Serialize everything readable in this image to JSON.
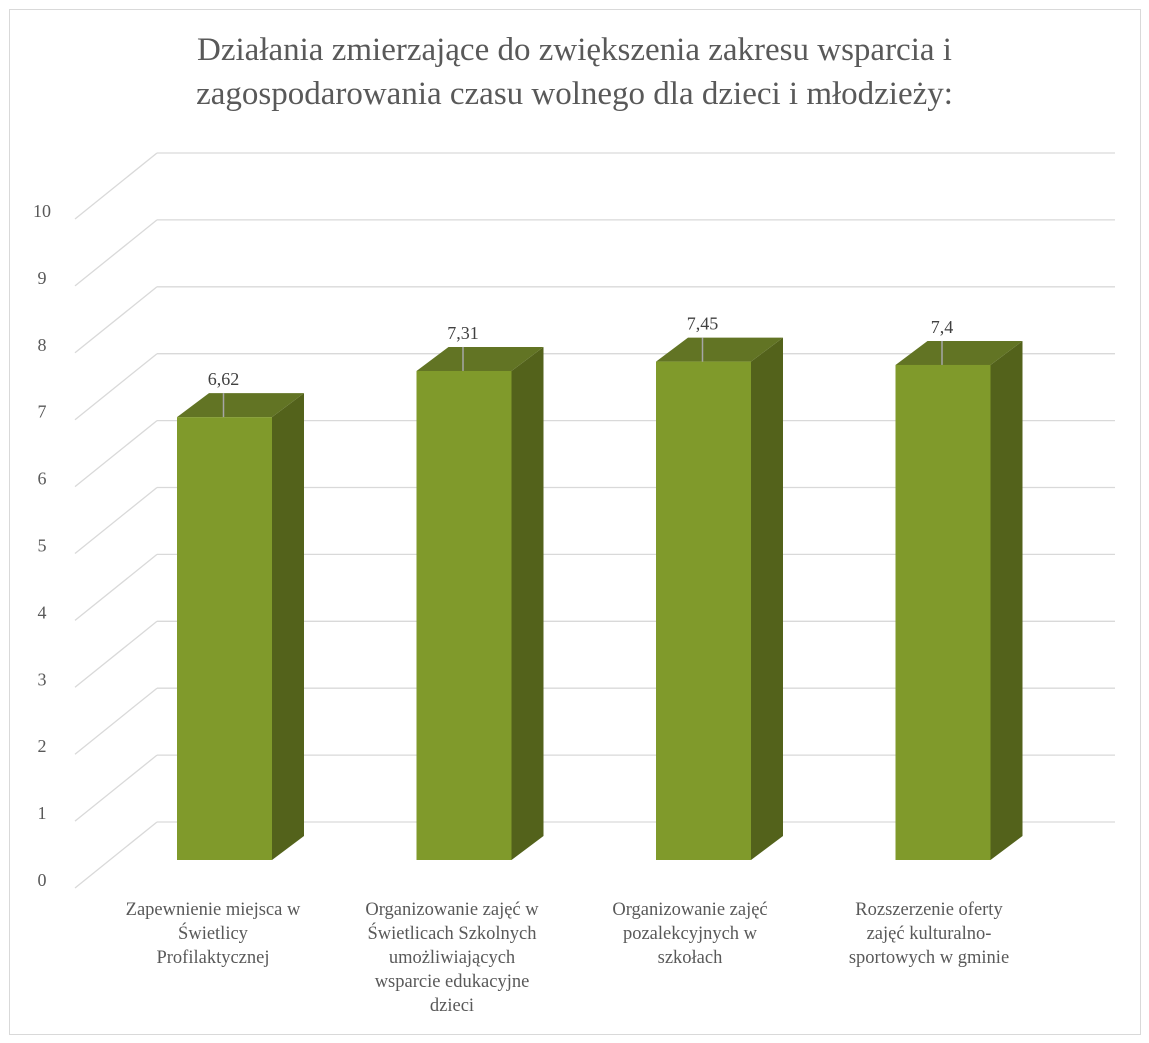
{
  "chart_data": {
    "type": "bar",
    "title_lines": [
      "Działania zmierzające do zwiększenia zakresu wsparcia i",
      "zagospodarowania czasu wolnego dla dzieci i młodzieży:"
    ],
    "categories": [
      [
        "Zapewnienie miejsca w",
        "Świetlicy",
        "Profilaktycznej"
      ],
      [
        "Organizowanie zajęć w",
        "Świetlicach Szkolnych",
        "umożliwiających",
        "wsparcie edukacyjne",
        "dzieci"
      ],
      [
        "Organizowanie zajęć",
        "pozalekcyjnych w",
        "szkołach"
      ],
      [
        "Rozszerzenie oferty",
        "zajęć kulturalno-",
        "sportowych w gminie"
      ]
    ],
    "values": [
      6.62,
      7.31,
      7.45,
      7.4
    ],
    "data_labels": [
      "6,62",
      "7,31",
      "7,45",
      "7,4"
    ],
    "ylim": [
      0,
      10
    ],
    "yticks": [
      "0",
      "1",
      "2",
      "3",
      "4",
      "5",
      "6",
      "7",
      "8",
      "9",
      "10"
    ],
    "grid": true,
    "style": "3d-column",
    "colors": {
      "front": "#809a2b",
      "side": "#53621b",
      "top": "#627424",
      "grid": "#d9d9d9",
      "text": "#595959"
    }
  }
}
